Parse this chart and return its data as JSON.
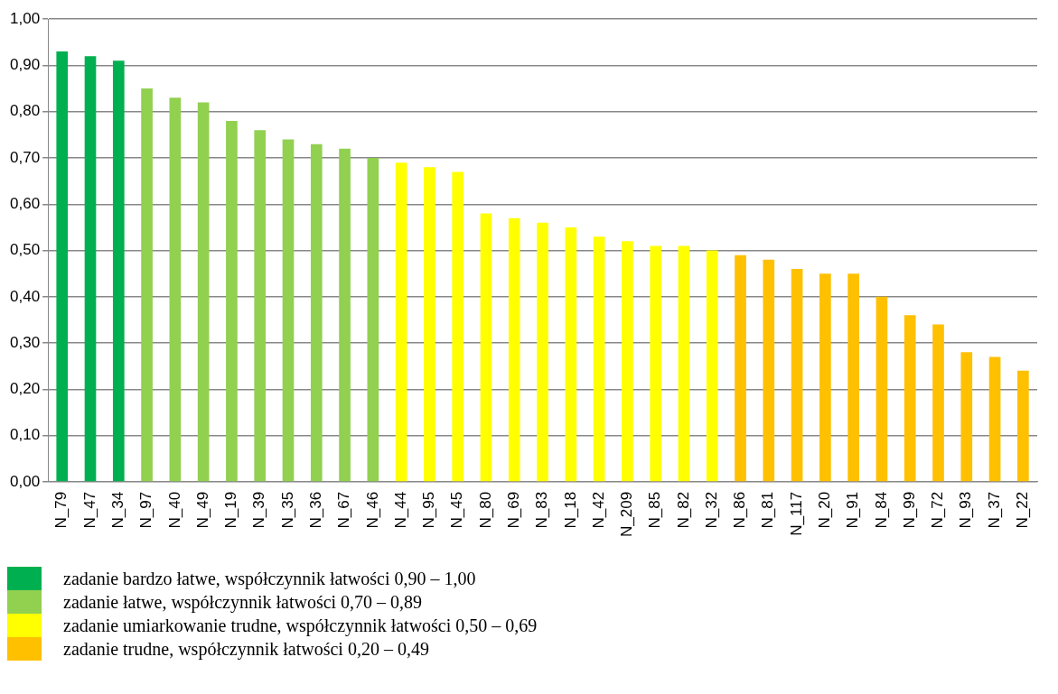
{
  "chart_data": {
    "type": "bar",
    "categories": [
      "N_79",
      "N_47",
      "N_34",
      "N_97",
      "N_40",
      "N_49",
      "N_19",
      "N_39",
      "N_35",
      "N_36",
      "N_67",
      "N_46",
      "N_44",
      "N_95",
      "N_45",
      "N_80",
      "N_69",
      "N_83",
      "N_18",
      "N_42",
      "N_209",
      "N_85",
      "N_82",
      "N_32",
      "N_86",
      "N_81",
      "N_117",
      "N_20",
      "N_91",
      "N_84",
      "N_99",
      "N_72",
      "N_93",
      "N_37",
      "N_22"
    ],
    "series": [
      {
        "name": "zadanie bardzo łatwe, współczynnik łatwości 0,90 – 1,00",
        "color": "#00b050",
        "values": [
          0.93,
          0.92,
          0.91,
          null,
          null,
          null,
          null,
          null,
          null,
          null,
          null,
          null,
          null,
          null,
          null,
          null,
          null,
          null,
          null,
          null,
          null,
          null,
          null,
          null,
          null,
          null,
          null,
          null,
          null,
          null,
          null,
          null,
          null,
          null,
          null
        ]
      },
      {
        "name": "zadanie łatwe, współczynnik łatwości 0,70 – 0,89",
        "color": "#92d050",
        "values": [
          null,
          null,
          null,
          0.85,
          0.83,
          0.82,
          0.78,
          0.76,
          0.74,
          0.73,
          0.72,
          0.7,
          null,
          null,
          null,
          null,
          null,
          null,
          null,
          null,
          null,
          null,
          null,
          null,
          null,
          null,
          null,
          null,
          null,
          null,
          null,
          null,
          null,
          null,
          null
        ]
      },
      {
        "name": "zadanie umiarkowanie trudne, współczynnik łatwości 0,50 – 0,69",
        "color": "#ffff00",
        "values": [
          null,
          null,
          null,
          null,
          null,
          null,
          null,
          null,
          null,
          null,
          null,
          null,
          0.69,
          0.68,
          0.67,
          0.58,
          0.57,
          0.56,
          0.55,
          0.53,
          0.52,
          0.51,
          0.51,
          0.5,
          null,
          null,
          null,
          null,
          null,
          null,
          null,
          null,
          null,
          null,
          null
        ]
      },
      {
        "name": "zadanie trudne, współczynnik łatwości 0,20 – 0,49",
        "color": "#ffc000",
        "values": [
          null,
          null,
          null,
          null,
          null,
          null,
          null,
          null,
          null,
          null,
          null,
          null,
          null,
          null,
          null,
          null,
          null,
          null,
          null,
          null,
          null,
          null,
          null,
          null,
          0.49,
          0.48,
          0.46,
          0.45,
          0.45,
          0.4,
          0.36,
          0.34,
          0.28,
          0.27,
          0.24
        ]
      }
    ],
    "ylim": [
      0,
      1
    ],
    "yticks": [
      {
        "value": 0,
        "label": "0,00"
      },
      {
        "value": 0.1,
        "label": "0,10"
      },
      {
        "value": 0.2,
        "label": "0,20"
      },
      {
        "value": 0.3,
        "label": "0,30"
      },
      {
        "value": 0.4,
        "label": "0,40"
      },
      {
        "value": 0.5,
        "label": "0,50"
      },
      {
        "value": 0.6,
        "label": "0,60"
      },
      {
        "value": 0.7,
        "label": "0,70"
      },
      {
        "value": 0.8,
        "label": "0,80"
      },
      {
        "value": 0.9,
        "label": "0,90"
      },
      {
        "value": 1,
        "label": "1,00"
      }
    ],
    "grid": "y",
    "legend": "bottom"
  }
}
